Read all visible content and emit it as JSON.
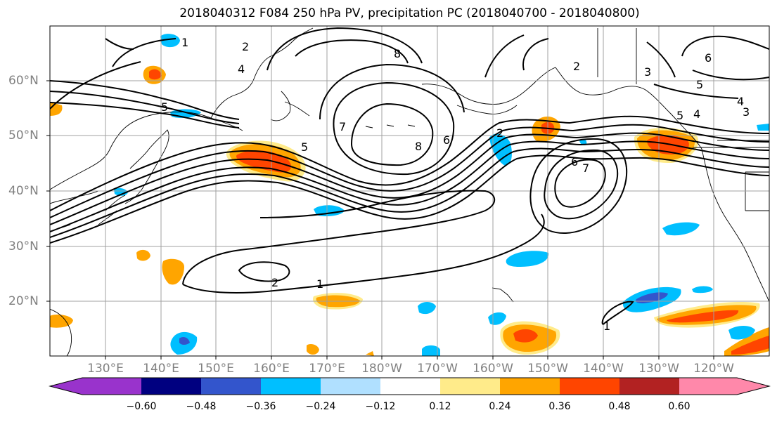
{
  "title": "2018040312 F084 250 hPa PV, precipitation PC (2018040700 - 2018040800)",
  "lat_labels": [
    "60°N",
    "50°N",
    "40°N",
    "30°N",
    "20°N"
  ],
  "lon_labels": [
    "130°E",
    "140°E",
    "150°E",
    "160°E",
    "170°E",
    "180°W",
    "170°W",
    "160°W",
    "150°W",
    "140°W",
    "130°W",
    "120°W"
  ],
  "colorbar": {
    "colors": [
      "#9933cc",
      "#000080",
      "#3355cc",
      "#00bfff",
      "#b0e0ff",
      "#ffffff",
      "#ffeb8a",
      "#ffa500",
      "#ff4500",
      "#b22222",
      "#ff88aa"
    ],
    "labels": [
      "−0.60",
      "−0.48",
      "−0.36",
      "−0.24",
      "−0.12",
      "0.12",
      "0.24",
      "0.36",
      "0.48",
      "0.60"
    ]
  },
  "contour_labels": {
    "l1": "1",
    "l2": "1",
    "l3": "2",
    "l4": "2",
    "l5": "5",
    "l6": "5",
    "l7": "7",
    "l8": "8",
    "l9": "6",
    "l10": "2",
    "l11": "6",
    "l12": "7",
    "l13": "5",
    "l14": "4",
    "l15": "3",
    "l16": "4",
    "l17": "3",
    "l18": "5",
    "l19": "6",
    "l20": "2",
    "l21": "8",
    "l22": "1",
    "l23": "4"
  }
}
